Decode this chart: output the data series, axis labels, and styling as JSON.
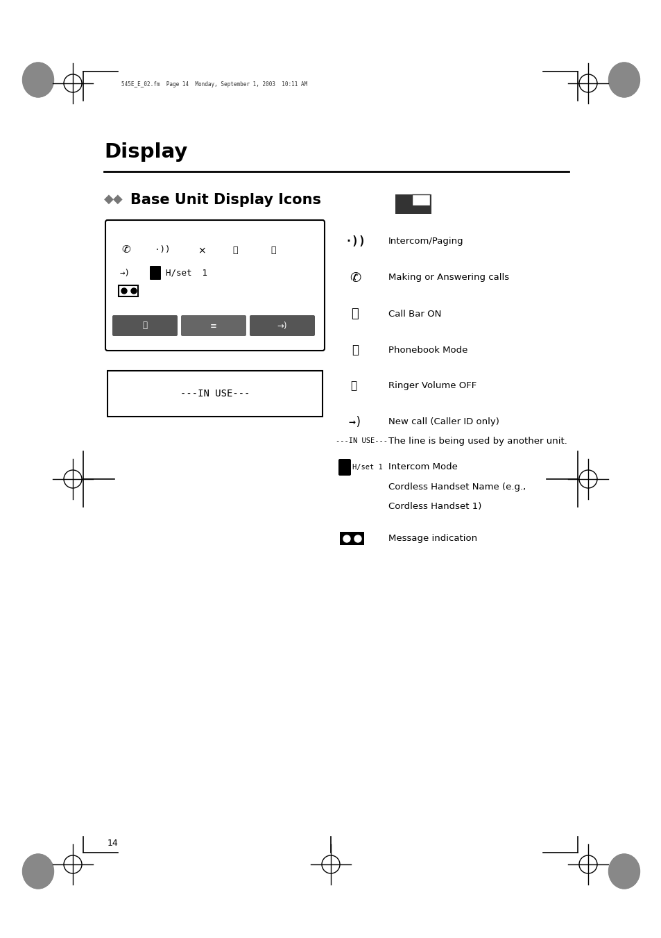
{
  "bg_color": "#ffffff",
  "page_width": 9.54,
  "page_height": 13.51,
  "title": "Display",
  "subtitle": "Base Unit Display Icons",
  "header_text": "545E_E_02.fm  Page 14  Monday, September 1, 2003  10:11 AM",
  "page_number": "14",
  "in_use_desc": "The line is being used by another unit.",
  "hset_desc_line1": "Intercom Mode",
  "hset_desc_line2": "Cordless Handset Name (e.g.,",
  "hset_desc_line3": "Cordless Handset 1)",
  "msg_desc": "Message indication",
  "intercom_label": "Intercom/Paging",
  "answering_label": "Making or Answering calls",
  "callbar_label": "Call Bar ON",
  "phonebook_label": "Phonebook Mode",
  "ringer_label": "Ringer Volume OFF",
  "newcall_label": "New call (Caller ID only)"
}
